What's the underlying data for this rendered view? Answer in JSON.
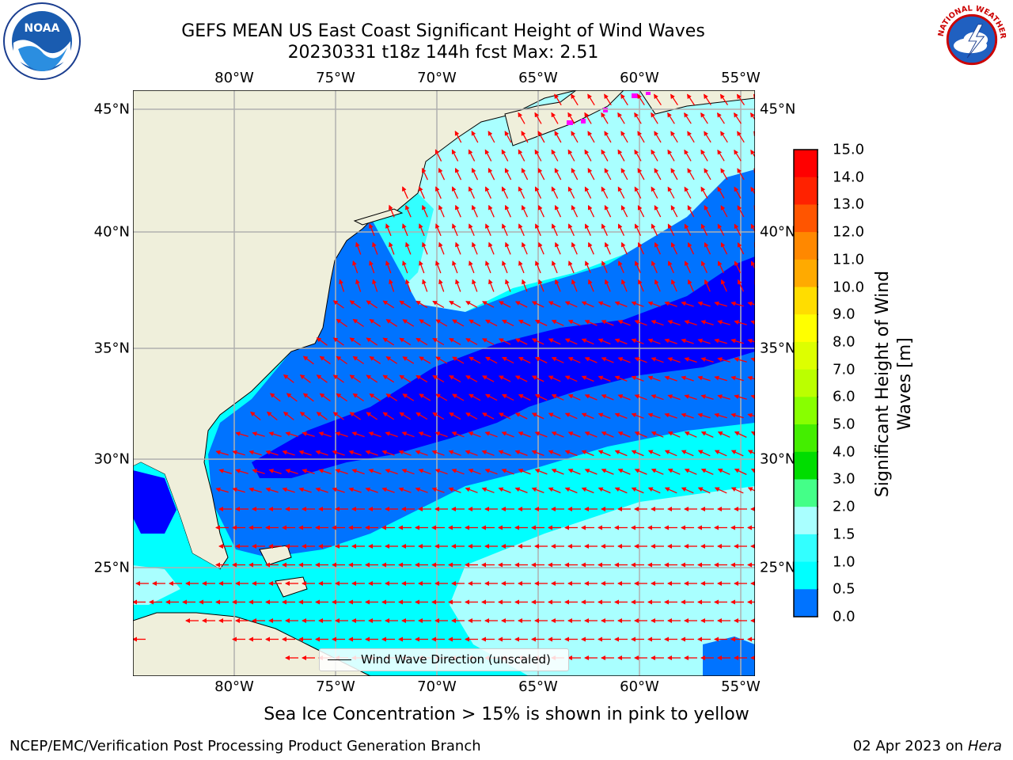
{
  "title_line1": "GEFS MEAN US East Coast Significant Height of Wind Waves",
  "title_line2": "20230331 t18z 144h fcst   Max: 2.51",
  "map": {
    "lon_range": [
      -85,
      -54
    ],
    "lat_range": [
      20,
      46
    ],
    "lon_ticks": [
      "80°W",
      "75°W",
      "70°W",
      "65°W",
      "60°W",
      "55°W"
    ],
    "lat_ticks": [
      "45°N",
      "40°N",
      "35°N",
      "30°N",
      "25°N"
    ],
    "colors": {
      "land": "#efefdb",
      "ocean_0_05": "#0000ff",
      "ocean_05_1": "#0073ff",
      "ocean_1_15": "#00ffff",
      "ocean_15_2": "#33ffff",
      "ocean_2_3": "#a9ffff",
      "arrow": "#ff0000",
      "ice": "#ff00ff",
      "grid": "#b0b0b0"
    },
    "legend_label": "Wind Wave Direction (unscaled)"
  },
  "colorbar": {
    "label": "Significant Height of Wind Waves [m]",
    "ticks": [
      "15.0",
      "14.0",
      "13.0",
      "12.0",
      "11.0",
      "10.0",
      "9.0",
      "8.0",
      "7.0",
      "6.0",
      "5.0",
      "4.0",
      "3.0",
      "2.0",
      "1.5",
      "1.0",
      "0.5",
      "0.0"
    ],
    "bands": [
      "#ff0000",
      "#ff2200",
      "#ff5500",
      "#ff8800",
      "#ffaa00",
      "#ffdd00",
      "#ffff00",
      "#ddff00",
      "#bbff00",
      "#88ff00",
      "#44ee00",
      "#00dd00",
      "#44ff88",
      "#a9ffff",
      "#33ffff",
      "#00ffff",
      "#0073ff",
      "#0000ff"
    ]
  },
  "ice_note": "Sea Ice Concentration > 15% is shown in pink to yellow",
  "credit": "NCEP/EMC/Verification Post Processing Product Generation Branch",
  "date_prefix": "02 Apr 2023 on ",
  "date_host": "Hera",
  "logos": {
    "left": "NOAA",
    "right": "NATIONAL WEATHER SERVICE"
  }
}
